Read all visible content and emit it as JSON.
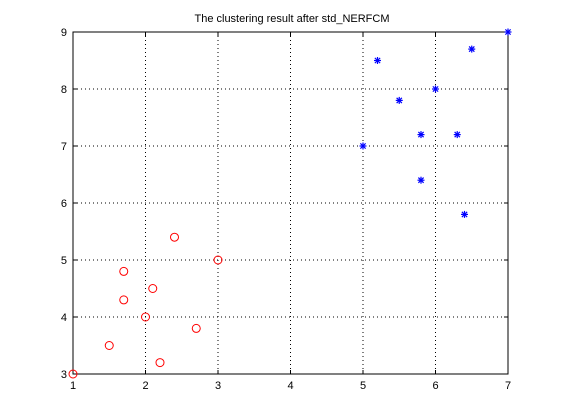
{
  "chart_data": {
    "type": "scatter",
    "title": "The clustering result after std_NERFCM",
    "xlabel": "",
    "ylabel": "",
    "xlim": [
      1,
      7
    ],
    "ylim": [
      3,
      9
    ],
    "xticks": [
      "1",
      "2",
      "3",
      "4",
      "5",
      "6",
      "7"
    ],
    "yticks": [
      "3",
      "4",
      "5",
      "6",
      "7",
      "8",
      "9"
    ],
    "grid": true,
    "series": [
      {
        "marker": "circle",
        "color": "#ff0000",
        "x": [
          1.0,
          1.5,
          1.7,
          1.7,
          2.0,
          2.1,
          2.2,
          2.4,
          2.7,
          3.0
        ],
        "y": [
          3.0,
          3.5,
          4.8,
          4.3,
          4.0,
          4.5,
          3.2,
          5.4,
          3.8,
          5.0
        ]
      },
      {
        "marker": "asterisk",
        "color": "#0000ff",
        "x": [
          5.0,
          5.2,
          5.5,
          5.8,
          5.8,
          6.0,
          6.3,
          6.4,
          6.5,
          7.0
        ],
        "y": [
          7.0,
          8.5,
          7.8,
          7.2,
          6.4,
          8.0,
          7.2,
          5.8,
          8.7,
          9.0
        ]
      }
    ]
  }
}
